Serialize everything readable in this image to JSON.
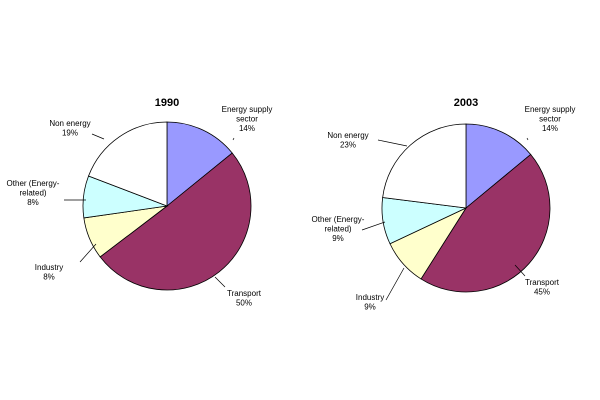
{
  "chart_data": [
    {
      "type": "pie",
      "title": "1990",
      "slices": [
        {
          "label_lines": [
            "Energy supply",
            "sector"
          ],
          "value": 14,
          "value_label": "14%",
          "color": "#9999ff"
        },
        {
          "label_lines": [
            "Transport"
          ],
          "value": 50,
          "value_label": "50%",
          "color": "#993366"
        },
        {
          "label_lines": [
            "Industry"
          ],
          "value": 8,
          "value_label": "8%",
          "color": "#ffffcc"
        },
        {
          "label_lines": [
            "Other (Energy-",
            "related)"
          ],
          "value": 8,
          "value_label": "8%",
          "color": "#ccffff"
        },
        {
          "label_lines": [
            "Non energy"
          ],
          "value": 19,
          "value_label": "19%",
          "color": "#ffffff"
        }
      ]
    },
    {
      "type": "pie",
      "title": "2003",
      "slices": [
        {
          "label_lines": [
            "Energy supply",
            "sector"
          ],
          "value": 14,
          "value_label": "14%",
          "color": "#9999ff"
        },
        {
          "label_lines": [
            "Transport"
          ],
          "value": 45,
          "value_label": "45%",
          "color": "#993366"
        },
        {
          "label_lines": [
            "Industry"
          ],
          "value": 9,
          "value_label": "9%",
          "color": "#ffffcc"
        },
        {
          "label_lines": [
            "Other (Energy-",
            "related)"
          ],
          "value": 9,
          "value_label": "9%",
          "color": "#ccffff"
        },
        {
          "label_lines": [
            "Non energy"
          ],
          "value": 23,
          "value_label": "23%",
          "color": "#ffffff"
        }
      ]
    }
  ]
}
